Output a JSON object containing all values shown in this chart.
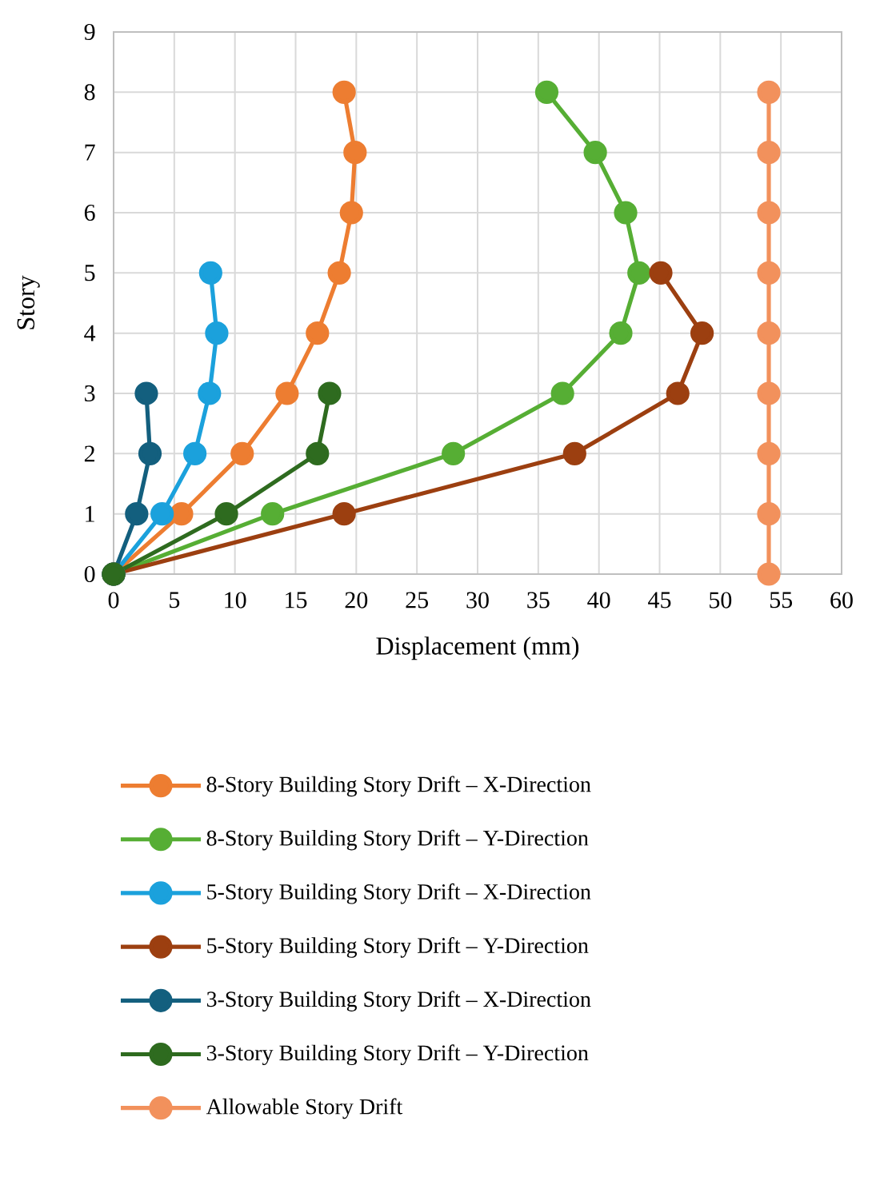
{
  "chart_data": {
    "type": "line",
    "xlabel": "Displacement  (mm)",
    "ylabel": "Story",
    "xlim": [
      0,
      60
    ],
    "xticks": [
      0,
      5,
      10,
      15,
      20,
      25,
      30,
      35,
      40,
      45,
      50,
      55,
      60
    ],
    "ylim": [
      0,
      9
    ],
    "yticks": [
      0,
      1,
      2,
      3,
      4,
      5,
      6,
      7,
      8,
      9
    ],
    "grid": true,
    "legend": "bottom",
    "marker": "circle",
    "line_style": "solid",
    "series": [
      {
        "name": "8-Story Building Story Drift – X-Direction",
        "color": "#ed7d31",
        "x": [
          0,
          5.6,
          10.6,
          14.3,
          16.8,
          18.6,
          19.6,
          19.9,
          19.0
        ],
        "values": [
          0,
          1,
          2,
          3,
          4,
          5,
          6,
          7,
          8
        ]
      },
      {
        "name": "8-Story Building Story Drift – Y-Direction",
        "color": "#56ae34",
        "x": [
          0,
          13.1,
          28.0,
          37.0,
          41.8,
          43.3,
          42.2,
          39.7,
          35.7
        ],
        "values": [
          0,
          1,
          2,
          3,
          4,
          5,
          6,
          7,
          8
        ]
      },
      {
        "name": "5-Story Building Story Drift – X-Direction",
        "color": "#1ba1dc",
        "x": [
          0,
          4.0,
          6.7,
          7.9,
          8.5,
          8.0
        ],
        "values": [
          0,
          1,
          2,
          3,
          4,
          5
        ]
      },
      {
        "name": "5-Story Building Story Drift – Y-Direction",
        "color": "#9c3f10",
        "x": [
          0,
          19.0,
          38.0,
          46.5,
          48.5,
          45.1
        ],
        "values": [
          0,
          1,
          2,
          3,
          4,
          5
        ]
      },
      {
        "name": "3-Story Building Story Drift – X-Direction",
        "color": "#135f7e",
        "x": [
          0,
          1.9,
          3.0,
          2.7
        ],
        "values": [
          0,
          1,
          2,
          3
        ]
      },
      {
        "name": "3-Story Building Story Drift – Y-Direction",
        "color": "#2e6b1f",
        "x": [
          0,
          9.3,
          16.8,
          17.8
        ],
        "values": [
          0,
          1,
          2,
          3
        ]
      },
      {
        "name": "Allowable  Story Drift",
        "color": "#f2915c",
        "x": [
          54,
          54,
          54,
          54,
          54,
          54,
          54,
          54,
          54
        ],
        "values": [
          0,
          1,
          2,
          3,
          4,
          5,
          6,
          7,
          8
        ]
      }
    ]
  }
}
